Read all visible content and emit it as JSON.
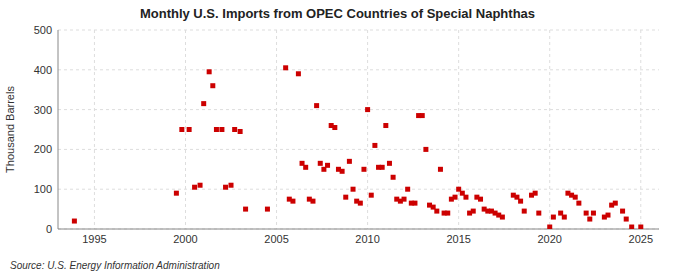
{
  "chart_data": {
    "type": "scatter",
    "title": "Monthly U.S. Imports from OPEC Countries of Special Naphthas",
    "ylabel": "Thousand Barrels",
    "source": "Source: U.S. Energy Information Administration",
    "color": "#cc0000",
    "marker": "square",
    "grid": true,
    "xlim": [
      1993.0,
      2026.0
    ],
    "ylim": [
      0,
      500
    ],
    "xticks": [
      1995,
      2000,
      2005,
      2010,
      2015,
      2020,
      2025
    ],
    "yticks": [
      0,
      100,
      200,
      300,
      400,
      500
    ],
    "x": [
      1993.9,
      1999.5,
      1999.8,
      2000.2,
      2000.5,
      2000.8,
      2001.0,
      2001.3,
      2001.5,
      2001.7,
      2002.0,
      2002.2,
      2002.5,
      2002.7,
      2003.0,
      2003.3,
      2004.5,
      2005.5,
      2005.7,
      2005.9,
      2006.2,
      2006.4,
      2006.6,
      2006.8,
      2007.0,
      2007.2,
      2007.4,
      2007.6,
      2007.8,
      2008.0,
      2008.2,
      2008.4,
      2008.6,
      2008.8,
      2009.0,
      2009.2,
      2009.4,
      2009.6,
      2009.8,
      2010.0,
      2010.2,
      2010.4,
      2010.6,
      2010.8,
      2011.0,
      2011.2,
      2011.4,
      2011.6,
      2011.8,
      2012.0,
      2012.2,
      2012.4,
      2012.6,
      2012.8,
      2013.0,
      2013.2,
      2013.4,
      2013.6,
      2013.8,
      2014.0,
      2014.2,
      2014.4,
      2014.6,
      2014.8,
      2015.0,
      2015.2,
      2015.4,
      2015.6,
      2015.8,
      2016.0,
      2016.2,
      2016.4,
      2016.6,
      2016.8,
      2017.0,
      2017.2,
      2017.4,
      2018.0,
      2018.2,
      2018.4,
      2018.6,
      2019.0,
      2019.2,
      2019.4,
      2020.0,
      2020.2,
      2020.6,
      2020.8,
      2021.0,
      2021.2,
      2021.4,
      2021.6,
      2022.0,
      2022.2,
      2022.4,
      2023.0,
      2023.2,
      2023.4,
      2023.6,
      2024.0,
      2024.2,
      2024.5,
      2025.0
    ],
    "values": [
      20,
      90,
      250,
      250,
      105,
      110,
      315,
      395,
      360,
      250,
      250,
      105,
      110,
      250,
      245,
      50,
      50,
      405,
      75,
      70,
      390,
      165,
      155,
      75,
      70,
      310,
      165,
      150,
      160,
      260,
      255,
      150,
      145,
      80,
      170,
      100,
      70,
      65,
      150,
      300,
      85,
      210,
      155,
      155,
      260,
      165,
      130,
      75,
      70,
      75,
      100,
      65,
      65,
      285,
      285,
      200,
      60,
      55,
      45,
      150,
      40,
      40,
      75,
      80,
      100,
      90,
      80,
      40,
      45,
      80,
      75,
      50,
      45,
      45,
      40,
      35,
      30,
      85,
      80,
      70,
      45,
      85,
      90,
      40,
      5,
      30,
      40,
      30,
      90,
      85,
      80,
      65,
      40,
      25,
      40,
      30,
      35,
      60,
      65,
      45,
      25,
      5,
      5
    ]
  }
}
